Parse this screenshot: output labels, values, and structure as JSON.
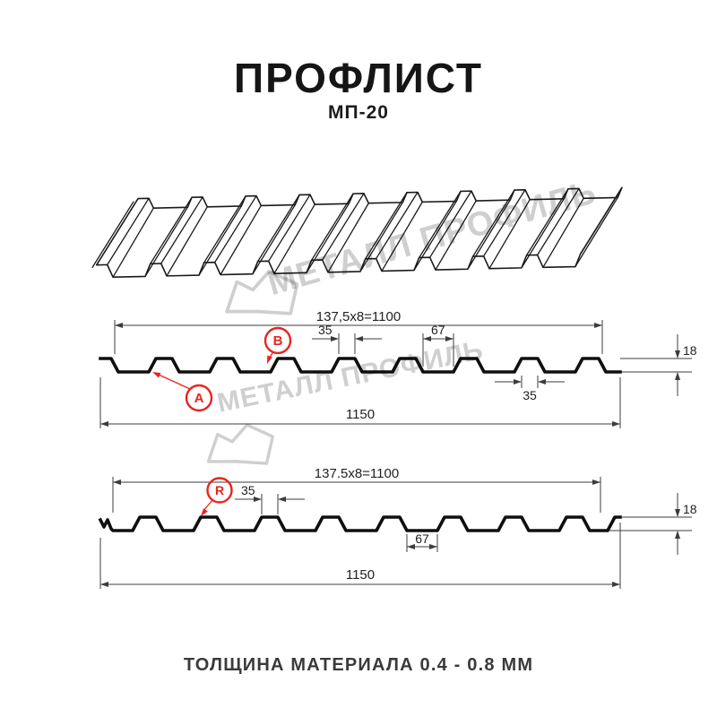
{
  "header": {
    "title": "ПРОФЛИСТ",
    "subtitle": "МП-20"
  },
  "watermark": {
    "text": "МЕТАЛЛ ПРОФИЛЬ",
    "logo": "metall-profil-logo"
  },
  "footer": {
    "text": "ТОЛЩИНА МАТЕРИАЛА 0.4 - 0.8 ММ"
  },
  "colors": {
    "accent_red": "#e9241f",
    "drawing_line": "#0f0f0f",
    "dimension_line": "#3c3c3c",
    "watermark_gray": "#cfcfcf"
  },
  "d1": {
    "dim_module": "137,5x8=1100",
    "dim_rib_top": "35",
    "dim_valley": "67",
    "dim_height": "18",
    "dim_rib_bottom": "35",
    "dim_width_total": "1150",
    "marker_a": "A",
    "marker_b": "B"
  },
  "d2": {
    "dim_module": "137.5x8=1100",
    "dim_rib_top": "35",
    "dim_valley": "67",
    "dim_height": "18",
    "dim_width_total": "1150",
    "marker_r": "R"
  }
}
